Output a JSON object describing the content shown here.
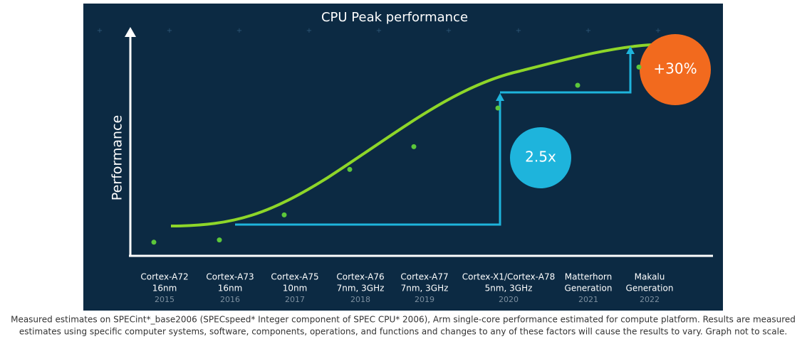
{
  "chart_data": {
    "type": "scatter",
    "title": "CPU Peak performance",
    "y_label": "Performance",
    "categories": [
      "Cortex-A72",
      "Cortex-A73",
      "Cortex-A75",
      "Cortex-A76",
      "Cortex-A77",
      "Cortex-X1/Cortex-A78",
      "Matterhorn",
      "Makalu"
    ],
    "details": [
      "16nm",
      "16nm",
      "10nm",
      "7nm, 3GHz",
      "7nm, 3GHz",
      "5nm, 3GHz",
      "Generation",
      "Generation"
    ],
    "years": [
      "2015",
      "2016",
      "2017",
      "2018",
      "2019",
      "2020",
      "2021",
      "2022"
    ],
    "values": [
      6,
      7,
      18,
      38,
      48,
      65,
      75,
      83
    ],
    "color": "#5cc73a",
    "ylim": [
      0,
      100
    ],
    "annotations": [
      "2.5x",
      "+30%"
    ],
    "footnote": [
      "Measured estimates on SPECint*_base2006 (SPECspeed* Integer component of SPEC CPU* 2006), Arm single-core performance estimated for compute platform. Results are measured",
      "estimates using specific computer systems, software, components, operations, and functions and changes to any of these factors will cause the results to vary. Graph not to scale."
    ]
  }
}
